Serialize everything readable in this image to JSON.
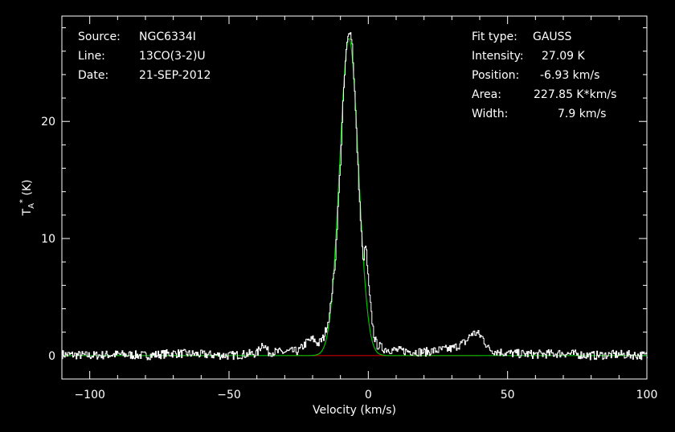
{
  "chart_data": {
    "type": "line",
    "title": "",
    "xlabel": "Velocity (km/s)",
    "ylabel": "T_A^* (K)",
    "xlim": [
      -110,
      100
    ],
    "ylim": [
      -2,
      29
    ],
    "x_ticks": [
      -100,
      -50,
      0,
      50,
      100
    ],
    "y_ticks": [
      0,
      10,
      20
    ],
    "grid": false,
    "colors": {
      "background": "#000000",
      "spectrum": "#ffffff",
      "fit": "#00c000",
      "baseline": "#e00000"
    },
    "header": {
      "source_label": "Source:",
      "source_value": "NGC6334I",
      "line_label": "Line:",
      "line_value": "13CO(3-2)U",
      "date_label": "Date:",
      "date_value": "21-SEP-2012"
    },
    "fit": {
      "type_label": "Fit type:",
      "type_value": "GAUSS",
      "intensity_label": "Intensity:",
      "intensity_value": "27.09 K",
      "intensity": 27.09,
      "position_label": "Position:",
      "position_value": "-6.93 km/s",
      "position": -6.93,
      "area_label": "Area:",
      "area_value": "227.85 K*km/s",
      "width_label": "Width:",
      "width_value": "7.9 km/s",
      "width": 7.9
    },
    "series": [
      {
        "x": [
          -110,
          -100,
          -90,
          -80,
          -70,
          -60,
          -50,
          -40,
          -38,
          -36,
          -30,
          -25,
          -22,
          -20,
          -18,
          -16,
          -14,
          -12,
          -11,
          -10,
          -9,
          -8,
          -7,
          -6,
          -5,
          -4,
          -3,
          -2,
          -1,
          0,
          1,
          2,
          3,
          4,
          5,
          8,
          12,
          20,
          30,
          35,
          37,
          39,
          41,
          43,
          45,
          50,
          60,
          70,
          80,
          90,
          100
        ],
        "y": [
          0.1,
          0.0,
          0.1,
          0.0,
          0.2,
          0.1,
          0.0,
          0.2,
          1.1,
          0.3,
          0.3,
          0.4,
          1.2,
          1.4,
          1.0,
          1.6,
          3.5,
          8.0,
          12.5,
          17.0,
          22.5,
          26.0,
          28.0,
          27.0,
          22.5,
          17.0,
          12.0,
          8.0,
          9.5,
          6.0,
          3.5,
          1.6,
          0.9,
          0.8,
          0.6,
          0.5,
          0.4,
          0.3,
          0.6,
          1.2,
          1.9,
          1.9,
          1.5,
          0.6,
          0.4,
          0.2,
          0.1,
          0.2,
          0.0,
          0.1,
          0.0
        ]
      }
    ]
  }
}
